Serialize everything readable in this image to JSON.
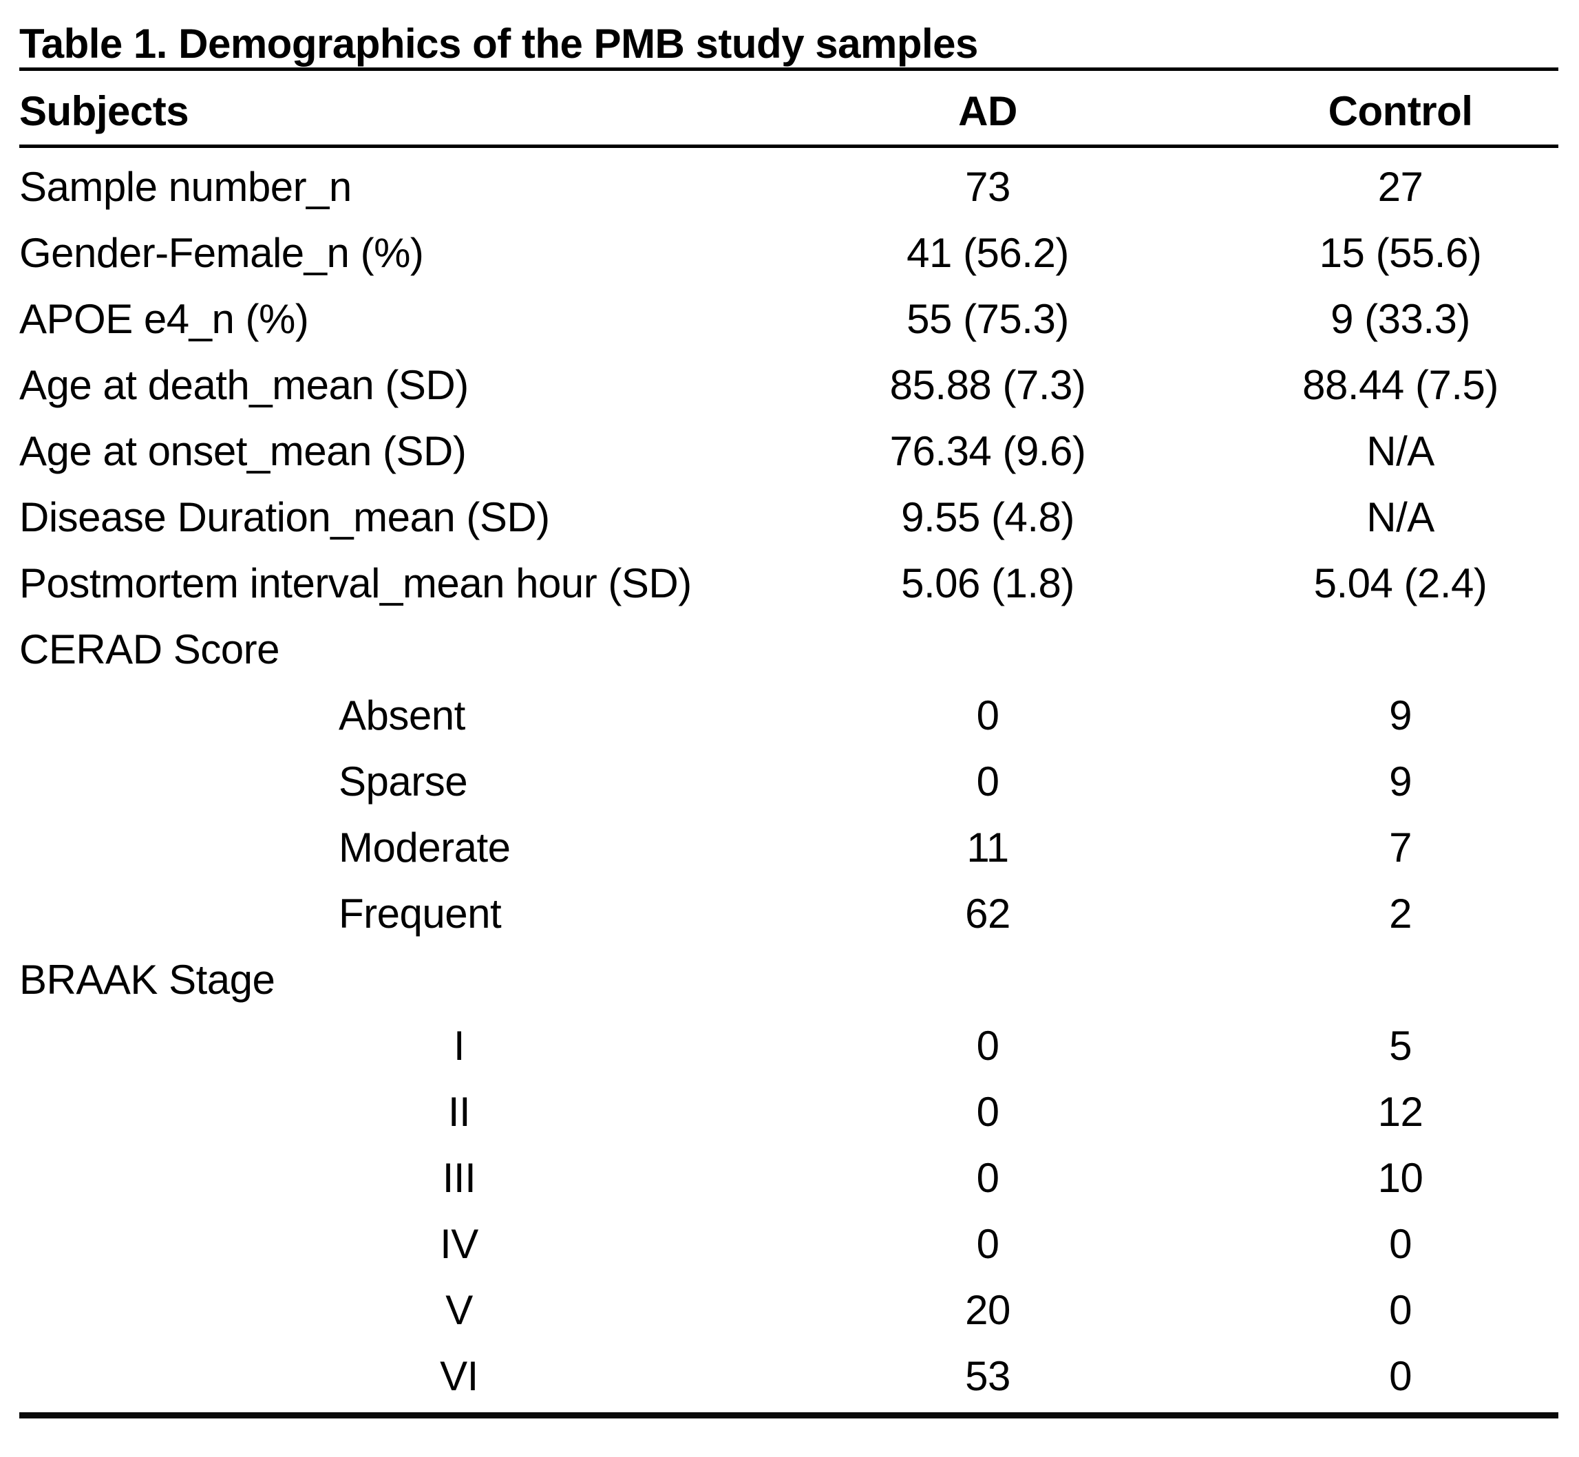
{
  "colors": {
    "text": "#000000",
    "background": "#ffffff",
    "rule_lines": "#000000"
  },
  "table": {
    "title": "Table 1. Demographics of the PMB study samples",
    "columns": [
      "Subjects",
      "AD",
      "Control"
    ],
    "rows": [
      {
        "label": "Sample number_n",
        "indent": 0,
        "ad": "73",
        "control": "27"
      },
      {
        "label": "Gender-Female_n (%)",
        "indent": 0,
        "ad": "41 (56.2)",
        "control": "15 (55.6)"
      },
      {
        "label": "APOE e4_n (%)",
        "indent": 0,
        "ad": "55 (75.3)",
        "control": "9 (33.3)"
      },
      {
        "label": "Age at death_mean (SD)",
        "indent": 0,
        "ad": "85.88 (7.3)",
        "control": "88.44 (7.5)"
      },
      {
        "label": "Age at onset_mean (SD)",
        "indent": 0,
        "ad": "76.34 (9.6)",
        "control": "N/A"
      },
      {
        "label": "Disease Duration_mean (SD)",
        "indent": 0,
        "ad": "9.55 (4.8)",
        "control": "N/A"
      },
      {
        "label": "Postmortem interval_mean hour (SD)",
        "indent": 0,
        "ad": "5.06 (1.8)",
        "control": "5.04 (2.4)"
      },
      {
        "label": "CERAD Score",
        "indent": 0,
        "ad": "",
        "control": ""
      },
      {
        "label": "Absent",
        "indent": 1,
        "ad": "0",
        "control": "9"
      },
      {
        "label": "Sparse",
        "indent": 1,
        "ad": "0",
        "control": "9"
      },
      {
        "label": "Moderate",
        "indent": 1,
        "ad": "11",
        "control": "7"
      },
      {
        "label": "Frequent",
        "indent": 1,
        "ad": "62",
        "control": "2"
      },
      {
        "label": "BRAAK Stage",
        "indent": 0,
        "ad": "",
        "control": ""
      },
      {
        "label": "I",
        "indent": 2,
        "ad": "0",
        "control": "5"
      },
      {
        "label": "II",
        "indent": 2,
        "ad": "0",
        "control": "12"
      },
      {
        "label": "III",
        "indent": 2,
        "ad": "0",
        "control": "10"
      },
      {
        "label": "IV",
        "indent": 2,
        "ad": "0",
        "control": "0"
      },
      {
        "label": "V",
        "indent": 2,
        "ad": "20",
        "control": "0"
      },
      {
        "label": "VI",
        "indent": 2,
        "ad": "53",
        "control": "0"
      }
    ]
  }
}
